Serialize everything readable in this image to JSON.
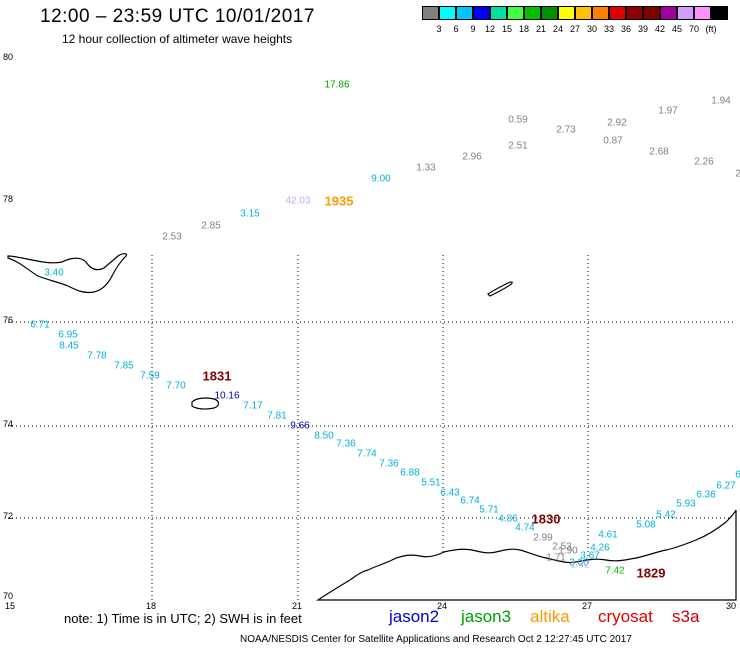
{
  "header": {
    "title": "12:00 – 23:59 UTC 10/01/2017",
    "subtitle": "12 hour collection of altimeter wave heights"
  },
  "colorbar": {
    "colors": [
      "#808080",
      "#00ffff",
      "#00c8ff",
      "#0000ff",
      "#00e0a0",
      "#40ff40",
      "#00c000",
      "#009000",
      "#ffff00",
      "#ffc000",
      "#ff8000",
      "#e00000",
      "#900000",
      "#800000",
      "#a000a0",
      "#d0a0ff",
      "#ff90ff",
      "#000000"
    ],
    "labels": [
      "3",
      "6",
      "9",
      "12",
      "15",
      "18",
      "21",
      "24",
      "27",
      "30",
      "33",
      "36",
      "39",
      "42",
      "45",
      "70",
      "(ft)"
    ]
  },
  "axes": {
    "lon_labels": [
      "15",
      "18",
      "21",
      "24",
      "27",
      "30"
    ],
    "lat_labels": [
      "80",
      "78",
      "76",
      "74",
      "72",
      "70"
    ]
  },
  "footer": {
    "note": "note:  1) Time is in UTC;  2) SWH is in feet",
    "satellites": [
      {
        "name": "jason2",
        "color": "#0000cc"
      },
      {
        "name": "jason3",
        "color": "#00a000"
      },
      {
        "name": "altika",
        "color": "#ff9900"
      },
      {
        "name": "cryosat",
        "color": "#e00000"
      },
      {
        "name": "s3a",
        "color": "#cc0000"
      }
    ],
    "credit": "NOAA/NESDIS Center for Satellite Applications and Research    Oct  2 12:27:45 UTC 2017"
  },
  "observations": [
    {
      "v": "17.86",
      "c": "#00a000"
    },
    {
      "v": "0.59",
      "c": "#808080"
    },
    {
      "v": "2.73",
      "c": "#808080"
    },
    {
      "v": "2.92",
      "c": "#808080"
    },
    {
      "v": "1.97",
      "c": "#808080"
    },
    {
      "v": "1.94",
      "c": "#808080"
    },
    {
      "v": "2.51",
      "c": "#808080"
    },
    {
      "v": "0.87",
      "c": "#808080"
    },
    {
      "v": "2.68",
      "c": "#808080"
    },
    {
      "v": "2.26",
      "c": "#808080"
    },
    {
      "v": "2",
      "c": "#808080"
    },
    {
      "v": "2.96",
      "c": "#808080"
    },
    {
      "v": "1.33",
      "c": "#808080"
    },
    {
      "v": "9.00",
      "c": "#00b0e0"
    },
    {
      "v": "42.03",
      "c": "#c8a8ff"
    },
    {
      "v": "3.15",
      "c": "#00b0e0"
    },
    {
      "v": "2.85",
      "c": "#808080"
    },
    {
      "v": "2.53",
      "c": "#808080"
    },
    {
      "v": "3.40",
      "c": "#00b0e0"
    },
    {
      "v": "6.71",
      "c": "#00b0e0"
    },
    {
      "v": "6.95",
      "c": "#00b0e0"
    },
    {
      "v": "8.45",
      "c": "#00b0e0"
    },
    {
      "v": "7.78",
      "c": "#00b0e0"
    },
    {
      "v": "7.85",
      "c": "#00b0e0"
    },
    {
      "v": "7.59",
      "c": "#00b0e0"
    },
    {
      "v": "7.70",
      "c": "#00b0e0"
    },
    {
      "v": "10.16",
      "c": "#0000cc"
    },
    {
      "v": "7.17",
      "c": "#00b0e0"
    },
    {
      "v": "7.81",
      "c": "#00b0e0"
    },
    {
      "v": "9.66",
      "c": "#0000cc"
    },
    {
      "v": "8.50",
      "c": "#00b0e0"
    },
    {
      "v": "7.36",
      "c": "#00b0e0"
    },
    {
      "v": "7.74",
      "c": "#00b0e0"
    },
    {
      "v": "7.36",
      "c": "#00b0e0"
    },
    {
      "v": "6.88",
      "c": "#00b0e0"
    },
    {
      "v": "5.51",
      "c": "#00b0e0"
    },
    {
      "v": "6.43",
      "c": "#00b0e0"
    },
    {
      "v": "6.74",
      "c": "#00b0e0"
    },
    {
      "v": "5.71",
      "c": "#00b0e0"
    },
    {
      "v": "4.86",
      "c": "#00b0e0"
    },
    {
      "v": "4.74",
      "c": "#00b0e0"
    },
    {
      "v": "2.99",
      "c": "#808080"
    },
    {
      "v": "2.53",
      "c": "#808080"
    },
    {
      "v": "1.71",
      "c": "#808080"
    },
    {
      "v": "1.90",
      "c": "#808080"
    },
    {
      "v": "3.00",
      "c": "#00b0e0"
    },
    {
      "v": "3.67",
      "c": "#00b0e0"
    },
    {
      "v": "4.26",
      "c": "#00b0e0"
    },
    {
      "v": "4.61",
      "c": "#00b0e0"
    },
    {
      "v": "5.08",
      "c": "#00b0e0"
    },
    {
      "v": "5.42",
      "c": "#00b0e0"
    },
    {
      "v": "5.93",
      "c": "#00b0e0"
    },
    {
      "v": "6.36",
      "c": "#00b0e0"
    },
    {
      "v": "6.27",
      "c": "#00b0e0"
    },
    {
      "v": "6",
      "c": "#00b0e0"
    },
    {
      "v": "1.42",
      "c": "#c8a8ff"
    },
    {
      "v": "7.42",
      "c": "#00c000"
    }
  ],
  "time_labels": [
    {
      "v": "1935",
      "c": "#ff9900"
    },
    {
      "v": "1831",
      "c": "#800000"
    },
    {
      "v": "1830",
      "c": "#800000"
    },
    {
      "v": "1829",
      "c": "#800000"
    }
  ]
}
